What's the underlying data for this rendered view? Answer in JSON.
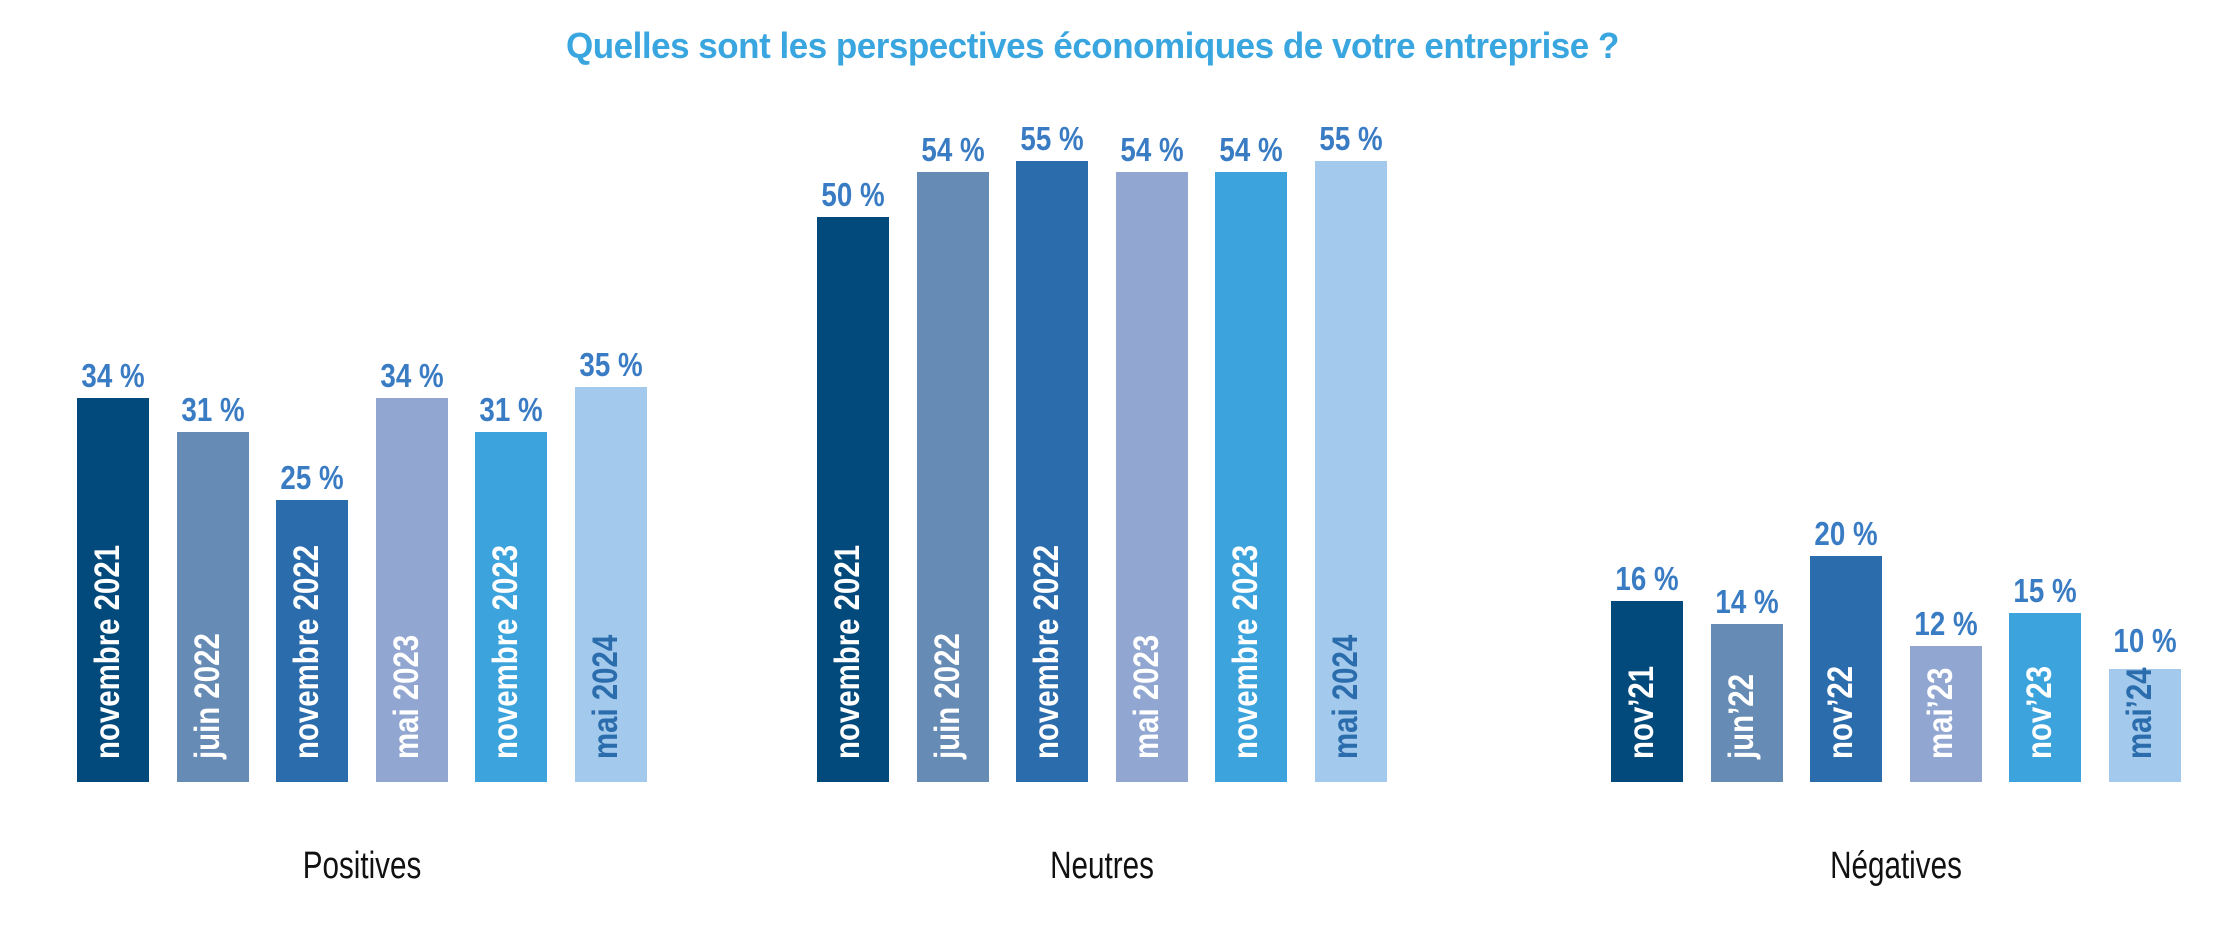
{
  "chart_data": {
    "type": "bar",
    "title": "Quelles sont les perspectives économiques de votre entreprise ?",
    "xlabel": "",
    "ylabel": "",
    "ylim": [
      0,
      60
    ],
    "grid": false,
    "value_suffix": " %",
    "groups": [
      {
        "name": "Positives",
        "categories": [
          "novembre 2021",
          "juin 2022",
          "novembre 2022",
          "mai 2023",
          "novembre 2023",
          "mai 2024"
        ],
        "values": [
          34,
          31,
          25,
          34,
          31,
          35
        ],
        "labels": [
          "34 %",
          "31 %",
          "25 %",
          "34 %",
          "31 %",
          "35 %"
        ]
      },
      {
        "name": "Neutres",
        "categories": [
          "novembre 2021",
          "juin 2022",
          "novembre 2022",
          "mai 2023",
          "novembre 2023",
          "mai 2024"
        ],
        "values": [
          50,
          54,
          55,
          54,
          54,
          55
        ],
        "labels": [
          "50 %",
          "54 %",
          "55 %",
          "54 %",
          "54 %",
          "55 %"
        ]
      },
      {
        "name": "Négatives",
        "categories": [
          "nov’21",
          "jun’22",
          "nov’22",
          "mai’23",
          "nov’23",
          "mai’24"
        ],
        "values": [
          16,
          14,
          20,
          12,
          15,
          10
        ],
        "labels": [
          "16 %",
          "14 %",
          "20 %",
          "12 %",
          "15 %",
          "10 %"
        ]
      }
    ],
    "series_colors": [
      "#034A7C",
      "#668BB5",
      "#2A6CAC",
      "#91A6D0",
      "#3CA3DC",
      "#A3C9EC"
    ],
    "category_text_colors": [
      "#FFFFFF",
      "#FFFFFF",
      "#FFFFFF",
      "#FFFFFF",
      "#FFFFFF",
      "#2A6CAC"
    ],
    "value_label_color": "#3A7CC4",
    "title_color": "#3AA6E0"
  }
}
